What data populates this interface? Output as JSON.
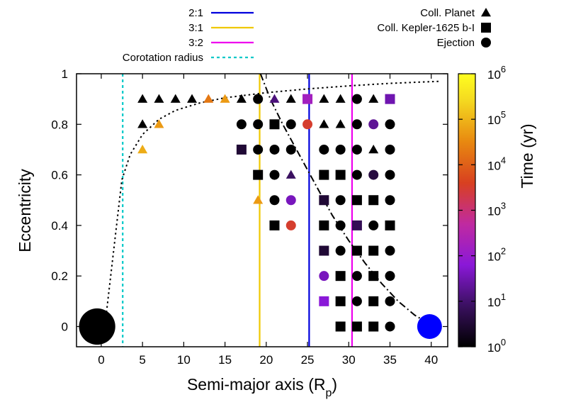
{
  "chart_data": {
    "type": "scatter",
    "xlabel_main": "Semi-major axis (R",
    "xlabel_sub": "p",
    "xlabel_close": ")",
    "ylabel": "Eccentricity",
    "xlim": [
      -3,
      42
    ],
    "ylim": [
      -0.08,
      1.0
    ],
    "xticks": [
      0,
      5,
      10,
      15,
      20,
      25,
      30,
      35,
      40
    ],
    "yticks": [
      0,
      0.2,
      0.4,
      0.6,
      0.8,
      1
    ],
    "ytick_labels": [
      "0",
      "0.2",
      "0.4",
      "0.6",
      "0.8",
      "1"
    ],
    "colorbar": {
      "label": "Time (yr)",
      "scale": "log",
      "range_log10": [
        0,
        6
      ],
      "tick_base": "10",
      "tick_exponents": [
        "0",
        "1",
        "2",
        "3",
        "4",
        "5",
        "6"
      ]
    },
    "lines": [
      {
        "name": "2:1",
        "x": 25.2,
        "color": "#0000dd",
        "style": "solid"
      },
      {
        "name": "3:1",
        "x": 19.2,
        "color": "#f0c800",
        "style": "solid"
      },
      {
        "name": "3:2",
        "x": 30.4,
        "color": "#ee00ee",
        "style": "solid"
      },
      {
        "name": "Corotation radius",
        "x": 2.6,
        "color": "#00c8c8",
        "style": "dashed"
      }
    ],
    "legend_left": [
      {
        "label": "2:1",
        "color": "#0000dd",
        "style": "solid"
      },
      {
        "label": "3:1",
        "color": "#f0c800",
        "style": "solid"
      },
      {
        "label": "3:2",
        "color": "#ee00ee",
        "style": "solid"
      },
      {
        "label": "Corotation radius",
        "color": "#00c8c8",
        "style": "dashed"
      }
    ],
    "legend_right": [
      {
        "label": "Coll. Planet",
        "marker": "triangle"
      },
      {
        "label": "Coll. Kepler-1625 b-I",
        "marker": "square"
      },
      {
        "label": "Ejection",
        "marker": "circle"
      }
    ],
    "bodies": [
      {
        "name": "planet",
        "x": -0.5,
        "y": 0,
        "color": "#000000",
        "radius_units": 2.2
      },
      {
        "name": "moon",
        "x": 39.8,
        "y": 0,
        "color": "#0000ff",
        "radius_units": 1.5
      }
    ],
    "curves": [
      {
        "name": "dotted-curve",
        "style": "dotted",
        "points": [
          [
            0.5,
            0.02
          ],
          [
            1.5,
            0.3
          ],
          [
            2.5,
            0.58
          ],
          [
            3.5,
            0.68
          ],
          [
            5,
            0.76
          ],
          [
            7,
            0.82
          ],
          [
            9,
            0.855
          ],
          [
            12,
            0.885
          ],
          [
            15,
            0.905
          ],
          [
            20,
            0.925
          ],
          [
            25,
            0.94
          ],
          [
            30,
            0.952
          ],
          [
            35,
            0.962
          ],
          [
            41,
            0.97
          ]
        ]
      },
      {
        "name": "dashdot-curve",
        "style": "dashdot",
        "points": [
          [
            19.3,
            1.0
          ],
          [
            20.5,
            0.9
          ],
          [
            22,
            0.8
          ],
          [
            24,
            0.68
          ],
          [
            26,
            0.56
          ],
          [
            28,
            0.44
          ],
          [
            30,
            0.34
          ],
          [
            32,
            0.25
          ],
          [
            34,
            0.17
          ],
          [
            36,
            0.1
          ],
          [
            38,
            0.045
          ],
          [
            39.8,
            0.01
          ]
        ]
      }
    ],
    "points": [
      {
        "x": 5,
        "y": 0.9,
        "m": "t",
        "t": -1
      },
      {
        "x": 7,
        "y": 0.9,
        "m": "t",
        "t": -1
      },
      {
        "x": 9,
        "y": 0.9,
        "m": "t",
        "t": -1
      },
      {
        "x": 11,
        "y": 0.9,
        "m": "t",
        "t": -1
      },
      {
        "x": 13,
        "y": 0.9,
        "m": "t",
        "t": 4.3
      },
      {
        "x": 15,
        "y": 0.9,
        "m": "t",
        "t": 4.7
      },
      {
        "x": 17,
        "y": 0.9,
        "m": "t",
        "t": -1
      },
      {
        "x": 19,
        "y": 0.9,
        "m": "c",
        "t": -1
      },
      {
        "x": 21,
        "y": 0.9,
        "m": "t",
        "t": 1.1
      },
      {
        "x": 23,
        "y": 0.9,
        "m": "t",
        "t": -1
      },
      {
        "x": 25,
        "y": 0.9,
        "m": "s",
        "t": 2.2
      },
      {
        "x": 27,
        "y": 0.9,
        "m": "t",
        "t": -1
      },
      {
        "x": 29,
        "y": 0.9,
        "m": "t",
        "t": -1
      },
      {
        "x": 31,
        "y": 0.9,
        "m": "c",
        "t": -1
      },
      {
        "x": 33,
        "y": 0.9,
        "m": "t",
        "t": -1
      },
      {
        "x": 35,
        "y": 0.9,
        "m": "s",
        "t": 1.5
      },
      {
        "x": 5,
        "y": 0.8,
        "m": "t",
        "t": -1
      },
      {
        "x": 7,
        "y": 0.8,
        "m": "t",
        "t": 4.7
      },
      {
        "x": 17,
        "y": 0.8,
        "m": "c",
        "t": -1
      },
      {
        "x": 19,
        "y": 0.8,
        "m": "c",
        "t": -1
      },
      {
        "x": 21,
        "y": 0.8,
        "m": "s",
        "t": -1
      },
      {
        "x": 23,
        "y": 0.8,
        "m": "c",
        "t": -1
      },
      {
        "x": 25,
        "y": 0.8,
        "m": "c",
        "t": 3.5
      },
      {
        "x": 27,
        "y": 0.8,
        "m": "t",
        "t": -1
      },
      {
        "x": 29,
        "y": 0.8,
        "m": "t",
        "t": -1
      },
      {
        "x": 31,
        "y": 0.8,
        "m": "c",
        "t": -1
      },
      {
        "x": 33,
        "y": 0.8,
        "m": "c",
        "t": 1.3
      },
      {
        "x": 35,
        "y": 0.8,
        "m": "c",
        "t": -1
      },
      {
        "x": 5,
        "y": 0.7,
        "m": "t",
        "t": 4.9
      },
      {
        "x": 17,
        "y": 0.7,
        "m": "s",
        "t": 0.5
      },
      {
        "x": 19,
        "y": 0.7,
        "m": "c",
        "t": -1
      },
      {
        "x": 21,
        "y": 0.7,
        "m": "c",
        "t": -1
      },
      {
        "x": 23,
        "y": 0.7,
        "m": "c",
        "t": -1
      },
      {
        "x": 27,
        "y": 0.7,
        "m": "c",
        "t": -1
      },
      {
        "x": 29,
        "y": 0.7,
        "m": "c",
        "t": -1
      },
      {
        "x": 31,
        "y": 0.7,
        "m": "c",
        "t": -1
      },
      {
        "x": 33,
        "y": 0.7,
        "m": "t",
        "t": -1
      },
      {
        "x": 35,
        "y": 0.7,
        "m": "c",
        "t": -1
      },
      {
        "x": 19,
        "y": 0.6,
        "m": "s",
        "t": -1
      },
      {
        "x": 21,
        "y": 0.6,
        "m": "c",
        "t": -1
      },
      {
        "x": 23,
        "y": 0.6,
        "m": "t",
        "t": 0.9
      },
      {
        "x": 27,
        "y": 0.6,
        "m": "s",
        "t": -1
      },
      {
        "x": 29,
        "y": 0.6,
        "m": "s",
        "t": -1
      },
      {
        "x": 31,
        "y": 0.6,
        "m": "c",
        "t": -1
      },
      {
        "x": 33,
        "y": 0.6,
        "m": "c",
        "t": 0.6
      },
      {
        "x": 35,
        "y": 0.6,
        "m": "c",
        "t": -1
      },
      {
        "x": 19,
        "y": 0.5,
        "m": "t",
        "t": 4.7
      },
      {
        "x": 21,
        "y": 0.5,
        "m": "c",
        "t": -1
      },
      {
        "x": 23,
        "y": 0.5,
        "m": "c",
        "t": 1.6
      },
      {
        "x": 27,
        "y": 0.5,
        "m": "s",
        "t": 0.5
      },
      {
        "x": 29,
        "y": 0.5,
        "m": "c",
        "t": -1
      },
      {
        "x": 31,
        "y": 0.5,
        "m": "s",
        "t": -1
      },
      {
        "x": 33,
        "y": 0.5,
        "m": "s",
        "t": -1
      },
      {
        "x": 35,
        "y": 0.5,
        "m": "c",
        "t": -1
      },
      {
        "x": 21,
        "y": 0.4,
        "m": "s",
        "t": -1
      },
      {
        "x": 23,
        "y": 0.4,
        "m": "c",
        "t": 3.5
      },
      {
        "x": 27,
        "y": 0.4,
        "m": "s",
        "t": -1
      },
      {
        "x": 29,
        "y": 0.4,
        "m": "c",
        "t": -1
      },
      {
        "x": 31,
        "y": 0.4,
        "m": "s",
        "t": 0.8
      },
      {
        "x": 33,
        "y": 0.4,
        "m": "c",
        "t": -1
      },
      {
        "x": 35,
        "y": 0.4,
        "m": "s",
        "t": -1
      },
      {
        "x": 27,
        "y": 0.3,
        "m": "s",
        "t": 0.5
      },
      {
        "x": 29,
        "y": 0.3,
        "m": "c",
        "t": -1
      },
      {
        "x": 31,
        "y": 0.3,
        "m": "s",
        "t": -1
      },
      {
        "x": 33,
        "y": 0.3,
        "m": "s",
        "t": -1
      },
      {
        "x": 35,
        "y": 0.3,
        "m": "c",
        "t": -1
      },
      {
        "x": 27,
        "y": 0.2,
        "m": "c",
        "t": 1.6
      },
      {
        "x": 29,
        "y": 0.2,
        "m": "s",
        "t": -1
      },
      {
        "x": 31,
        "y": 0.2,
        "m": "c",
        "t": -1
      },
      {
        "x": 33,
        "y": 0.2,
        "m": "s",
        "t": -1
      },
      {
        "x": 35,
        "y": 0.2,
        "m": "c",
        "t": -1
      },
      {
        "x": 27,
        "y": 0.1,
        "m": "s",
        "t": 1.8
      },
      {
        "x": 29,
        "y": 0.1,
        "m": "s",
        "t": -1
      },
      {
        "x": 31,
        "y": 0.1,
        "m": "c",
        "t": -1
      },
      {
        "x": 33,
        "y": 0.1,
        "m": "s",
        "t": -1
      },
      {
        "x": 35,
        "y": 0.1,
        "m": "c",
        "t": -1
      },
      {
        "x": 29,
        "y": 0.0,
        "m": "s",
        "t": -1
      },
      {
        "x": 31,
        "y": 0.0,
        "m": "s",
        "t": -1
      },
      {
        "x": 33,
        "y": 0.0,
        "m": "s",
        "t": -1
      },
      {
        "x": 35,
        "y": 0.0,
        "m": "c",
        "t": -1
      }
    ]
  }
}
